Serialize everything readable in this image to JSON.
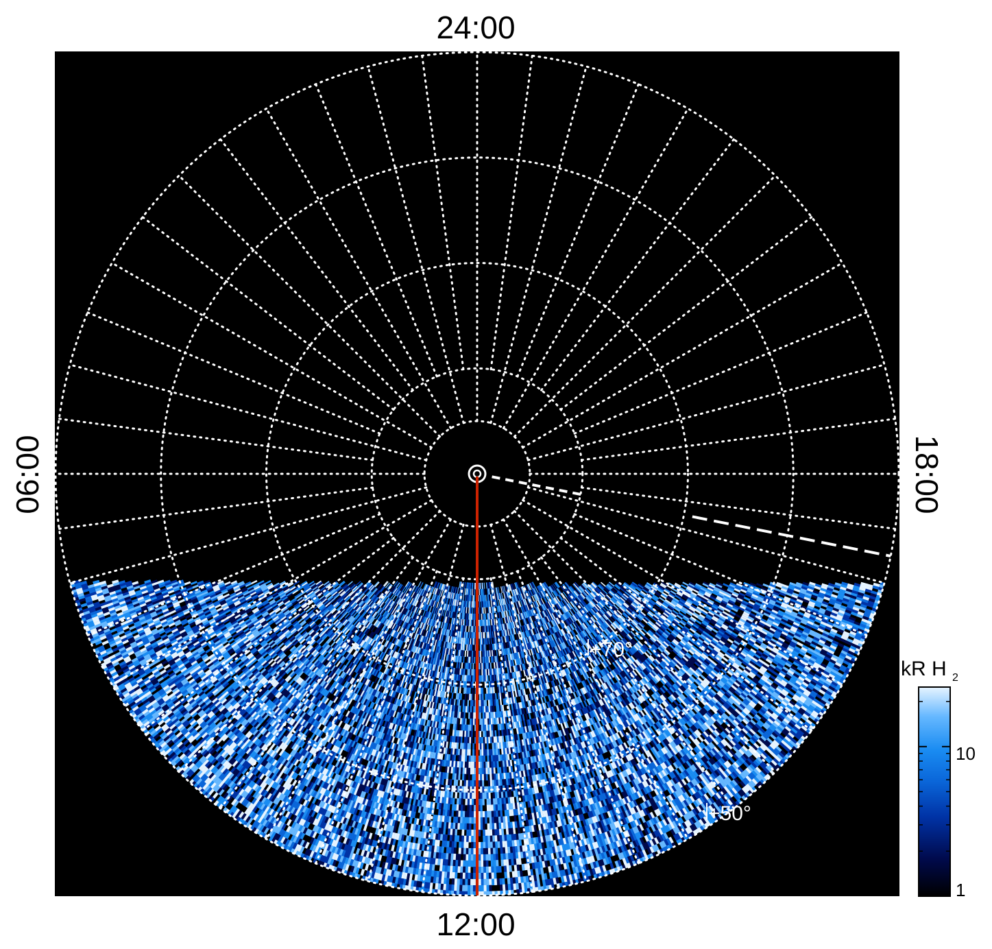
{
  "chart_data": {
    "type": "heatmap",
    "projection": "polar",
    "background_color": "#000000",
    "grid": true,
    "grid_color": "#ffffff",
    "grid_style": "dotted",
    "local_time_labels": {
      "top": "24:00",
      "bottom": "12:00",
      "left": "06:00",
      "right": "18:00"
    },
    "latitude_labels": [
      {
        "label": "+70°",
        "colatitude_deg": 20
      },
      {
        "label": "+50°",
        "colatitude_deg": 40
      }
    ],
    "latitude_circles_colatitude_deg": [
      5,
      10,
      20,
      30,
      40
    ],
    "meridian_spacing_hours": 1,
    "max_colatitude_deg": 40,
    "observed_region_local_time_start": "07:00",
    "observed_region_local_time_end": "17:15",
    "reference_meridian_local_time": "12:00",
    "reference_meridian_color": "#cc2200",
    "dashed_boundary_local_time": "17:15",
    "colorbar": {
      "title": "kR H",
      "title_subscript": "2",
      "scale": "log",
      "range": [
        1,
        25
      ],
      "tick_labels": [
        "1",
        "10"
      ],
      "tick_values": [
        1,
        10
      ],
      "colors": [
        "#000000",
        "#000a4d",
        "#0033a6",
        "#0a66d9",
        "#1a8cf2",
        "#66b8ff",
        "#e6f4ff"
      ],
      "placement": "right"
    }
  }
}
